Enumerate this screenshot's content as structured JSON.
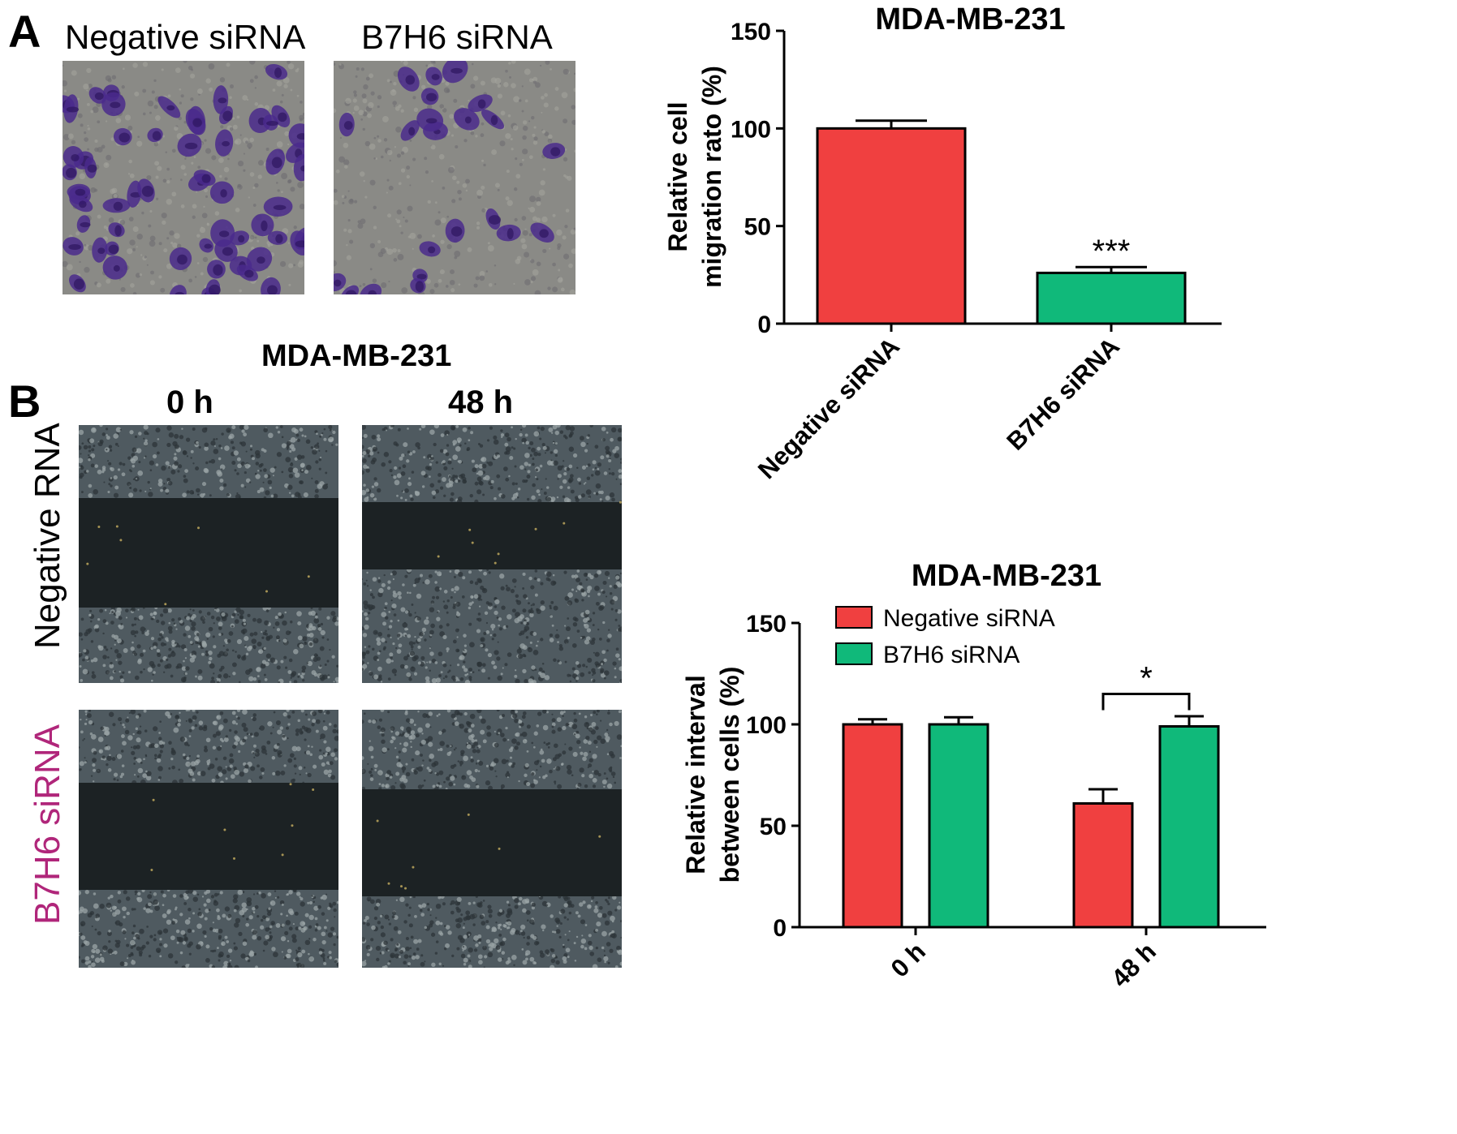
{
  "panel_a": {
    "letter": "A",
    "images": [
      {
        "label": "Negative siRNA",
        "stain_level": "high"
      },
      {
        "label": "B7H6 siRNA",
        "stain_level": "low"
      }
    ]
  },
  "panel_b": {
    "letter": "B",
    "title": "MDA-MB-231",
    "col_labels": [
      "0 h",
      "48 h"
    ],
    "row_labels": [
      {
        "text": "Negative RNA",
        "color": "#000000"
      },
      {
        "text": "B7H6 siRNA",
        "color": "#b0267a"
      }
    ]
  },
  "chart_data": [
    {
      "type": "bar",
      "title": "MDA-MB-231",
      "xlabel": "",
      "ylabel": "Relative cell migration rato (%)",
      "ylabel_lines": [
        "Relative cell",
        "migration rato (%)"
      ],
      "ylim": [
        0,
        150
      ],
      "yticks": [
        "0",
        "50",
        "100",
        "150"
      ],
      "categories": [
        "Negative siRNA",
        "B7H6 siRNA"
      ],
      "values": [
        100,
        26
      ],
      "errors": [
        4,
        3
      ],
      "colors": [
        "#f04040",
        "#10b97a"
      ],
      "annotations": [
        {
          "category": "B7H6 siRNA",
          "text": "***"
        }
      ],
      "grid": false
    },
    {
      "type": "bar",
      "title": "MDA-MB-231",
      "xlabel": "",
      "ylabel": "Relative interval between cells (%)",
      "ylabel_lines": [
        "Relative interval",
        "between cells (%)"
      ],
      "ylim": [
        0,
        150
      ],
      "yticks": [
        "0",
        "50",
        "100",
        "150"
      ],
      "categories": [
        "0 h",
        "48 h"
      ],
      "series": [
        {
          "name": "Negative siRNA",
          "values": [
            100,
            61
          ],
          "errors": [
            2.5,
            7
          ],
          "color": "#f04040"
        },
        {
          "name": "B7H6 siRNA",
          "values": [
            100,
            99
          ],
          "errors": [
            3.5,
            5
          ],
          "color": "#10b97a"
        }
      ],
      "annotations": [
        {
          "category": "48 h",
          "text": "*"
        }
      ],
      "legend": "top-left",
      "grid": false
    }
  ]
}
